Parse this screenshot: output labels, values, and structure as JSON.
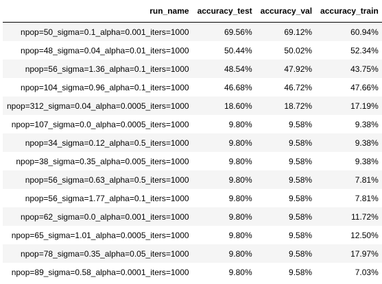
{
  "table": {
    "columns": [
      "run_name",
      "accuracy_test",
      "accuracy_val",
      "accuracy_train"
    ],
    "rows": [
      [
        "npop=50_sigma=0.1_alpha=0.001_iters=1000",
        "69.56%",
        "69.12%",
        "60.94%"
      ],
      [
        "npop=48_sigma=0.04_alpha=0.01_iters=1000",
        "50.44%",
        "50.02%",
        "52.34%"
      ],
      [
        "npop=56_sigma=1.36_alpha=0.1_iters=1000",
        "48.54%",
        "47.92%",
        "43.75%"
      ],
      [
        "npop=104_sigma=0.96_alpha=0.1_iters=1000",
        "46.68%",
        "46.72%",
        "47.66%"
      ],
      [
        "npop=312_sigma=0.04_alpha=0.0005_iters=1000",
        "18.60%",
        "18.72%",
        "17.19%"
      ],
      [
        "npop=107_sigma=0.0_alpha=0.0005_iters=1000",
        "9.80%",
        "9.58%",
        "9.38%"
      ],
      [
        "npop=34_sigma=0.12_alpha=0.5_iters=1000",
        "9.80%",
        "9.58%",
        "9.38%"
      ],
      [
        "npop=38_sigma=0.35_alpha=0.005_iters=1000",
        "9.80%",
        "9.58%",
        "9.38%"
      ],
      [
        "npop=56_sigma=0.63_alpha=0.5_iters=1000",
        "9.80%",
        "9.58%",
        "7.81%"
      ],
      [
        "npop=56_sigma=1.77_alpha=0.1_iters=1000",
        "9.80%",
        "9.58%",
        "7.81%"
      ],
      [
        "npop=62_sigma=0.0_alpha=0.001_iters=1000",
        "9.80%",
        "9.58%",
        "11.72%"
      ],
      [
        "npop=65_sigma=1.01_alpha=0.0005_iters=1000",
        "9.80%",
        "9.58%",
        "12.50%"
      ],
      [
        "npop=78_sigma=0.35_alpha=0.05_iters=1000",
        "9.80%",
        "9.58%",
        "17.97%"
      ],
      [
        "npop=89_sigma=0.58_alpha=0.0001_iters=1000",
        "9.80%",
        "9.58%",
        "7.03%"
      ]
    ]
  }
}
